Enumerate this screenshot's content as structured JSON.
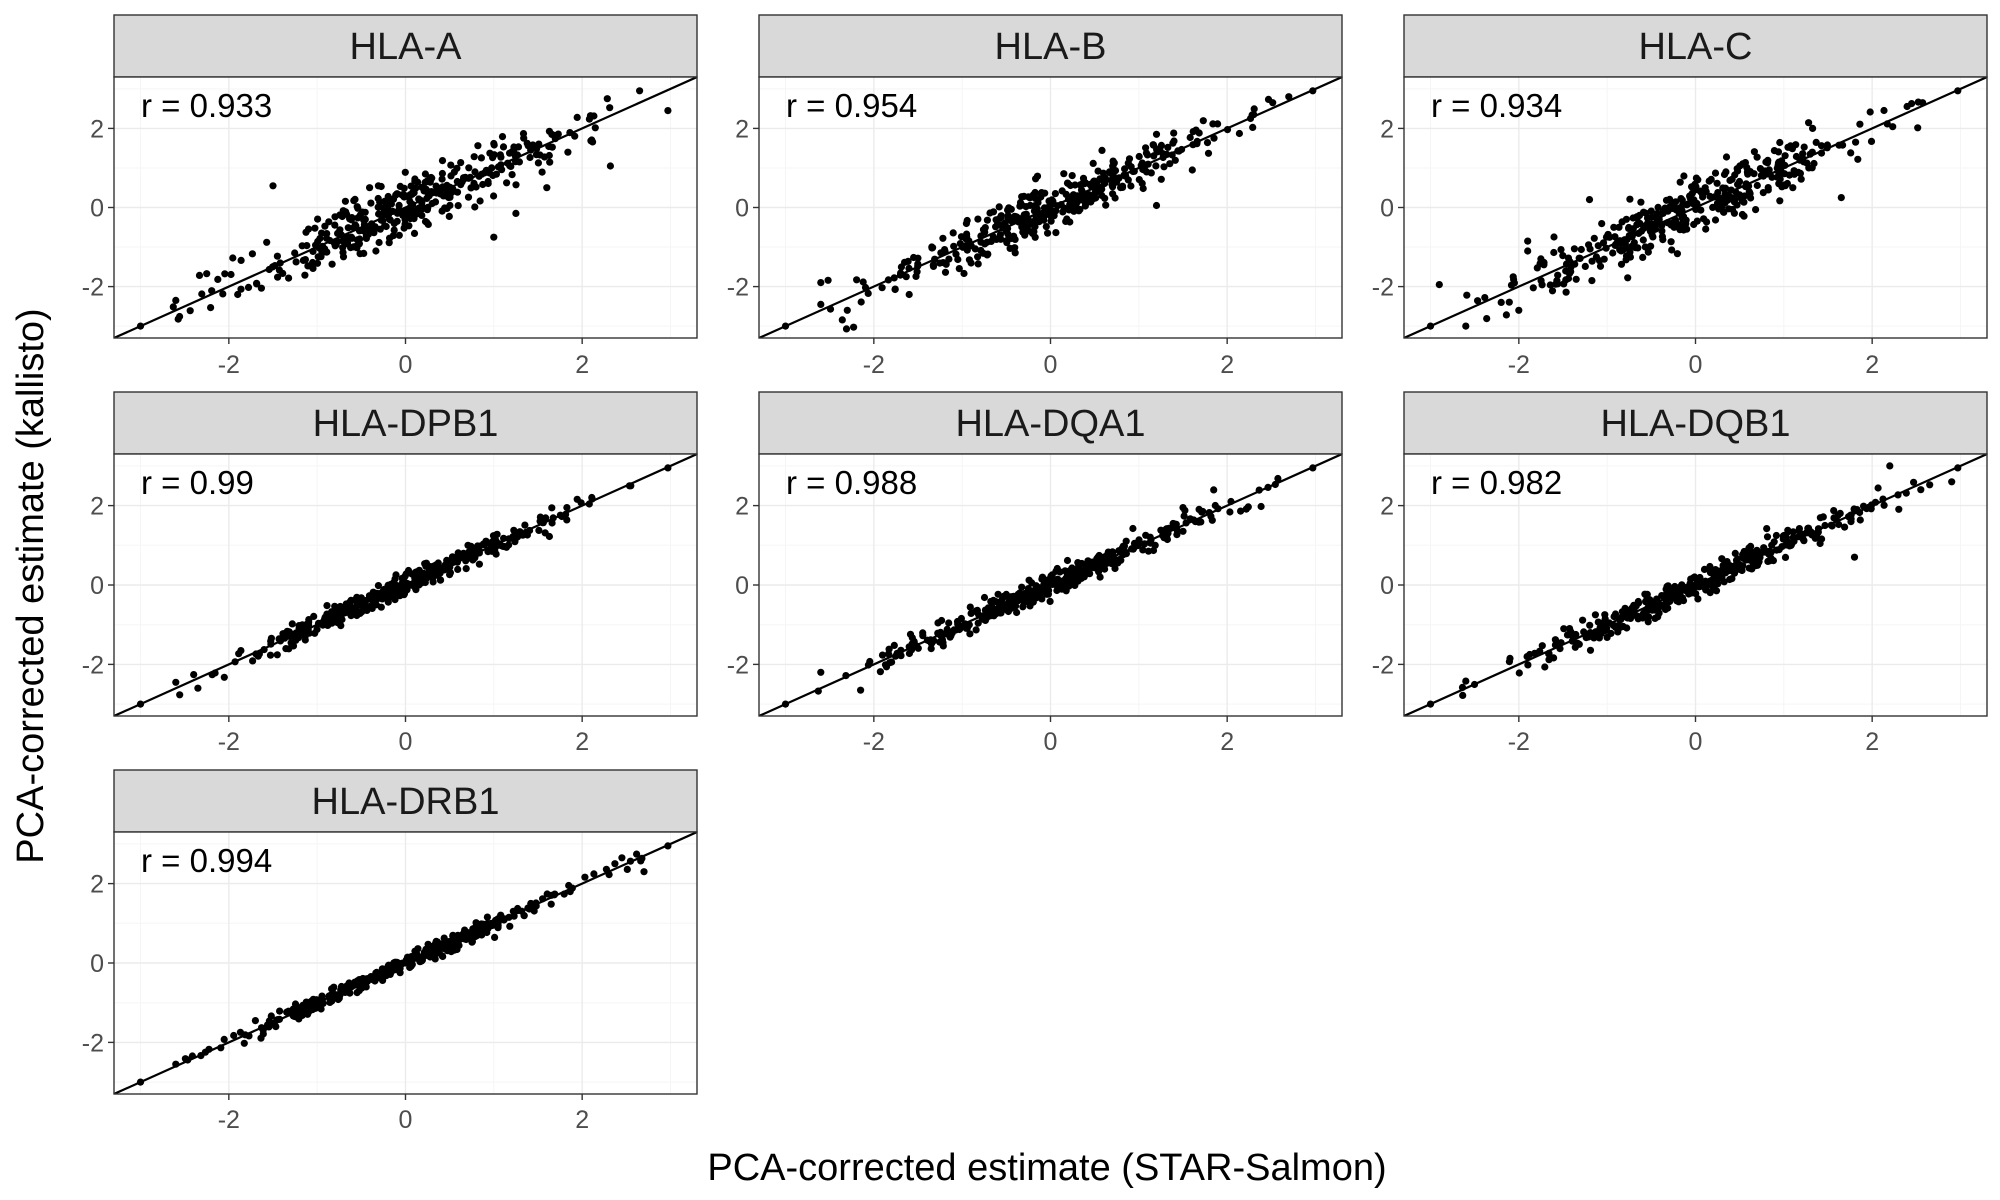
{
  "chart_data": {
    "type": "scatter",
    "xlabel": "PCA-corrected estimate (STAR-Salmon)",
    "ylabel": "PCA-corrected estimate (kallisto)",
    "xlim": [
      -3.3,
      3.3
    ],
    "ylim": [
      -3.3,
      3.3
    ],
    "x_ticks": [
      -2,
      0,
      2
    ],
    "y_ticks": [
      -2,
      0,
      2
    ],
    "x_tick_labels": [
      "-2",
      "0",
      "2"
    ],
    "y_tick_labels": [
      "-2",
      "0",
      "2"
    ],
    "grid": true,
    "reference_line": "y = x",
    "facets": [
      {
        "name": "HLA-A",
        "r_label": "r = 0.933",
        "r": 0.933,
        "extremes": [
          [
            -3.0,
            -3.0
          ],
          [
            2.65,
            2.95
          ],
          [
            2.97,
            2.45
          ],
          [
            -1.5,
            0.55
          ],
          [
            2.32,
            1.05
          ],
          [
            1.0,
            -0.75
          ],
          [
            1.25,
            -0.15
          ],
          [
            1.6,
            0.5
          ],
          [
            -1.9,
            -2.2
          ],
          [
            -2.6,
            -2.35
          ]
        ]
      },
      {
        "name": "HLA-B",
        "r_label": "r = 0.954",
        "r": 0.954,
        "extremes": [
          [
            -3.0,
            -3.0
          ],
          [
            2.97,
            2.95
          ],
          [
            1.2,
            1.85
          ],
          [
            1.2,
            0.05
          ],
          [
            -2.3,
            -2.6
          ],
          [
            -2.6,
            -1.9
          ],
          [
            -2.6,
            -2.45
          ],
          [
            2.3,
            2.35
          ],
          [
            -1.6,
            -2.2
          ]
        ]
      },
      {
        "name": "HLA-C",
        "r_label": "r = 0.934",
        "r": 0.934,
        "extremes": [
          [
            -3.0,
            -3.0
          ],
          [
            -2.9,
            -1.95
          ],
          [
            -2.6,
            -3.0
          ],
          [
            2.97,
            2.95
          ],
          [
            -2.0,
            -2.6
          ],
          [
            -1.9,
            -0.85
          ],
          [
            -1.9,
            -1.1
          ],
          [
            1.65,
            0.25
          ],
          [
            -1.2,
            0.2
          ],
          [
            -1.75,
            -1.3
          ],
          [
            -2.2,
            -2.4
          ]
        ]
      },
      {
        "name": "HLA-DPB1",
        "r_label": "r = 0.99",
        "r": 0.99,
        "extremes": [
          [
            -3.0,
            -3.0
          ],
          [
            2.97,
            2.95
          ],
          [
            -2.6,
            -2.45
          ],
          [
            -2.35,
            -2.6
          ],
          [
            2.55,
            2.5
          ]
        ]
      },
      {
        "name": "HLA-DQA1",
        "r_label": "r = 0.988",
        "r": 0.988,
        "extremes": [
          [
            -3.0,
            -3.0
          ],
          [
            2.97,
            2.95
          ],
          [
            -2.6,
            -2.2
          ],
          [
            -2.15,
            -2.65
          ],
          [
            1.5,
            1.95
          ]
        ]
      },
      {
        "name": "HLA-DQB1",
        "r_label": "r = 0.982",
        "r": 0.982,
        "extremes": [
          [
            -3.0,
            -3.0
          ],
          [
            2.97,
            2.95
          ],
          [
            2.2,
            3.0
          ],
          [
            1.8,
            0.7
          ],
          [
            2.9,
            2.6
          ],
          [
            2.55,
            2.4
          ],
          [
            -2.1,
            -1.85
          ]
        ]
      },
      {
        "name": "HLA-DRB1",
        "r_label": "r = 0.994",
        "r": 0.994,
        "extremes": [
          [
            -3.0,
            -3.0
          ],
          [
            2.97,
            2.95
          ],
          [
            2.7,
            2.3
          ],
          [
            -2.6,
            -2.55
          ],
          [
            2.45,
            2.65
          ]
        ]
      }
    ]
  }
}
